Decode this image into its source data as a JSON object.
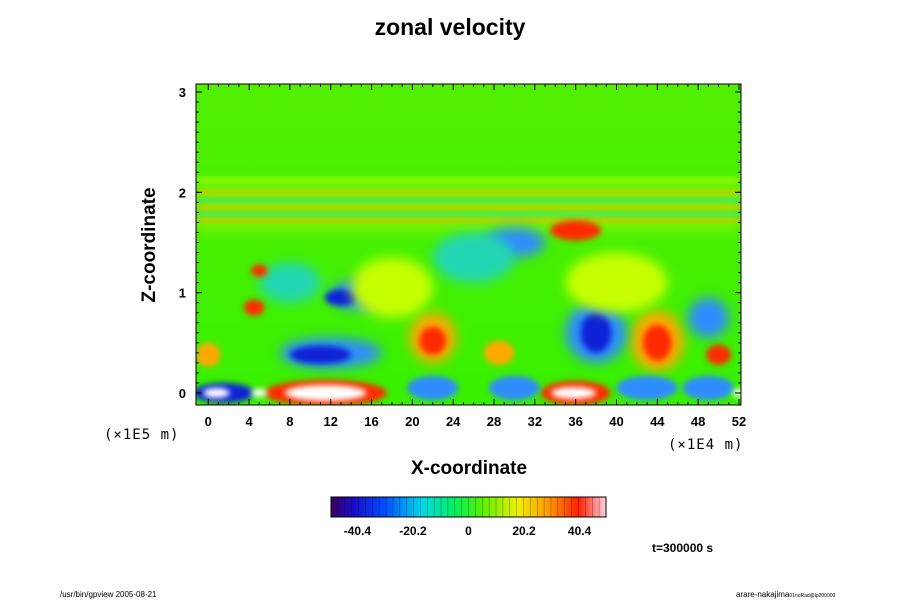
{
  "chart_data": {
    "type": "heatmap",
    "title": "zonal velocity",
    "xlabel": "X-coordinate",
    "ylabel": "Z-coordinate",
    "x_unit": "(×1E4 m)",
    "y_unit": "(×1E5 m)",
    "x_ticks": [
      "0",
      "4",
      "8",
      "12",
      "16",
      "20",
      "24",
      "28",
      "32",
      "36",
      "40",
      "44",
      "48",
      "52"
    ],
    "y_ticks": [
      "0",
      "1",
      "2",
      "3"
    ],
    "xlim": [
      -1.2,
      52.2
    ],
    "ylim": [
      -0.12,
      3.08
    ],
    "colorbar": {
      "ticks": [
        "-40.4",
        "-20.2",
        "0",
        "20.2",
        "40.4"
      ],
      "range": [
        -50,
        50
      ]
    },
    "colors": {
      "background": "#38f000",
      "upper": "#4cf000",
      "positive_strong": "#ff2a00",
      "positive_mid": "#ffa800",
      "negative_strong": "#0a23d6",
      "negative_mid": "#2d8cff",
      "weak_negative": "#20d6b4",
      "weak_positive": "#c8ff00",
      "extreme": "#ffffff"
    },
    "annotation": "t=300000 s",
    "footer_left": "/usr/bin/gpview 2005-08-21",
    "footer_right": "arare-nakajima",
    "footer_right_sub": "01noRad@lp200000"
  }
}
